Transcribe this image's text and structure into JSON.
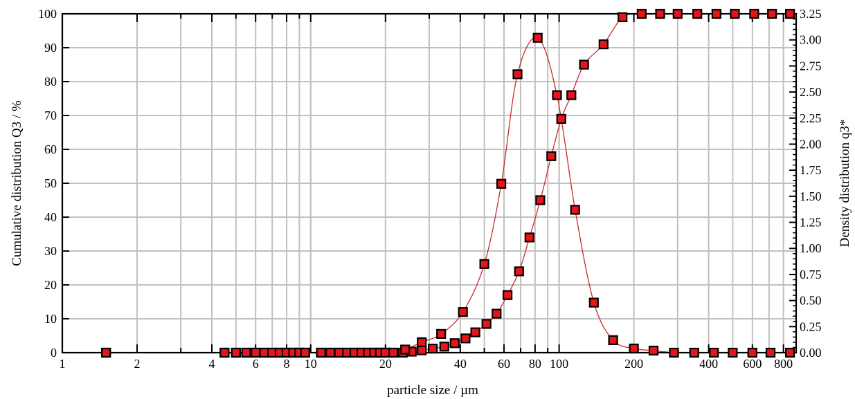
{
  "chart_data": {
    "type": "scatter",
    "title": "",
    "xlabel": "particle size / µm",
    "ylabel_left": "Cumulative distribution Q3 / %",
    "ylabel_right": "Density distribution q3*",
    "x_scale": "log",
    "xlim": [
      1,
      900
    ],
    "ylim_left": [
      0,
      100
    ],
    "ylim_right": [
      0,
      3.25
    ],
    "grid": true,
    "legend": "none",
    "x_tick_labels": [
      "1",
      "2",
      "4",
      "6",
      "8",
      "10",
      "20",
      "40",
      "60",
      "80",
      "100",
      "200",
      "400",
      "600",
      "800"
    ],
    "y_left_tick_labels": [
      "0",
      "10",
      "20",
      "30",
      "40",
      "50",
      "60",
      "70",
      "80",
      "90",
      "100"
    ],
    "y_right_tick_labels": [
      "0.00",
      "0.25",
      "0.50",
      "0.75",
      "1.00",
      "1.25",
      "1.50",
      "1.75",
      "2.00",
      "2.25",
      "2.50",
      "2.75",
      "3.00",
      "3.25"
    ],
    "colors": {
      "marker_fill": "#e8141b",
      "marker_edge": "#000000",
      "curve": "#c8282d",
      "grid": "#c0c0c0",
      "axis": "#000000"
    },
    "series": [
      {
        "axis": "left",
        "x": [
          1.5,
          4.5,
          5.0,
          5.5,
          6.0,
          6.5,
          7.0,
          7.5,
          8.0,
          8.5,
          9.0,
          9.5,
          11.0,
          12.0,
          13.0,
          14.0,
          15.0,
          16.0,
          17.0,
          18.0,
          19.0,
          20.0,
          21.5,
          23.5,
          25.5,
          28.0,
          31.0,
          34.5,
          38.0,
          42.0,
          46.0,
          51.0,
          56.0,
          62.0,
          69.0,
          76.0,
          84.0,
          93.0,
          102.0,
          112.0,
          126.0,
          151.0,
          180.0,
          215.0,
          255.0,
          300.0,
          360.0,
          430.0,
          510.0,
          610.0,
          720.0,
          850.0
        ],
        "y": [
          0,
          0,
          0,
          0,
          0,
          0,
          0,
          0,
          0,
          0,
          0,
          0,
          0,
          0,
          0,
          0,
          0,
          0,
          0,
          0,
          0,
          0,
          0,
          0,
          0.3,
          0.7,
          1.2,
          1.8,
          2.8,
          4.2,
          6.0,
          8.5,
          11.5,
          17.0,
          24.0,
          34.0,
          45.0,
          58.0,
          69.0,
          76.0,
          85.0,
          91.0,
          99.0,
          100,
          100,
          100,
          100,
          100,
          100,
          100,
          100,
          100
        ]
      },
      {
        "axis": "right",
        "x": [
          1.5,
          4.5,
          5.0,
          5.5,
          6.0,
          6.5,
          7.0,
          7.5,
          8.0,
          8.5,
          9.0,
          9.5,
          11.0,
          12.0,
          13.0,
          14.0,
          15.0,
          16.0,
          17.0,
          18.0,
          19.0,
          20.0,
          21.5,
          24.0,
          28.0,
          33.5,
          41.0,
          50.0,
          58.5,
          68.0,
          82.0,
          98.0,
          116.0,
          138.0,
          165.0,
          200.0,
          240.0,
          290.0,
          350.0,
          420.0,
          500.0,
          600.0,
          710.0,
          850.0
        ],
        "y": [
          0,
          0,
          0,
          0,
          0,
          0,
          0,
          0,
          0,
          0,
          0,
          0,
          0,
          0,
          0,
          0,
          0,
          0,
          0,
          0,
          0,
          0,
          0,
          0.03,
          0.1,
          0.18,
          0.39,
          0.85,
          1.62,
          2.67,
          3.02,
          2.47,
          1.37,
          0.48,
          0.12,
          0.04,
          0.02,
          0,
          0,
          0,
          0,
          0,
          0,
          0
        ]
      }
    ]
  }
}
